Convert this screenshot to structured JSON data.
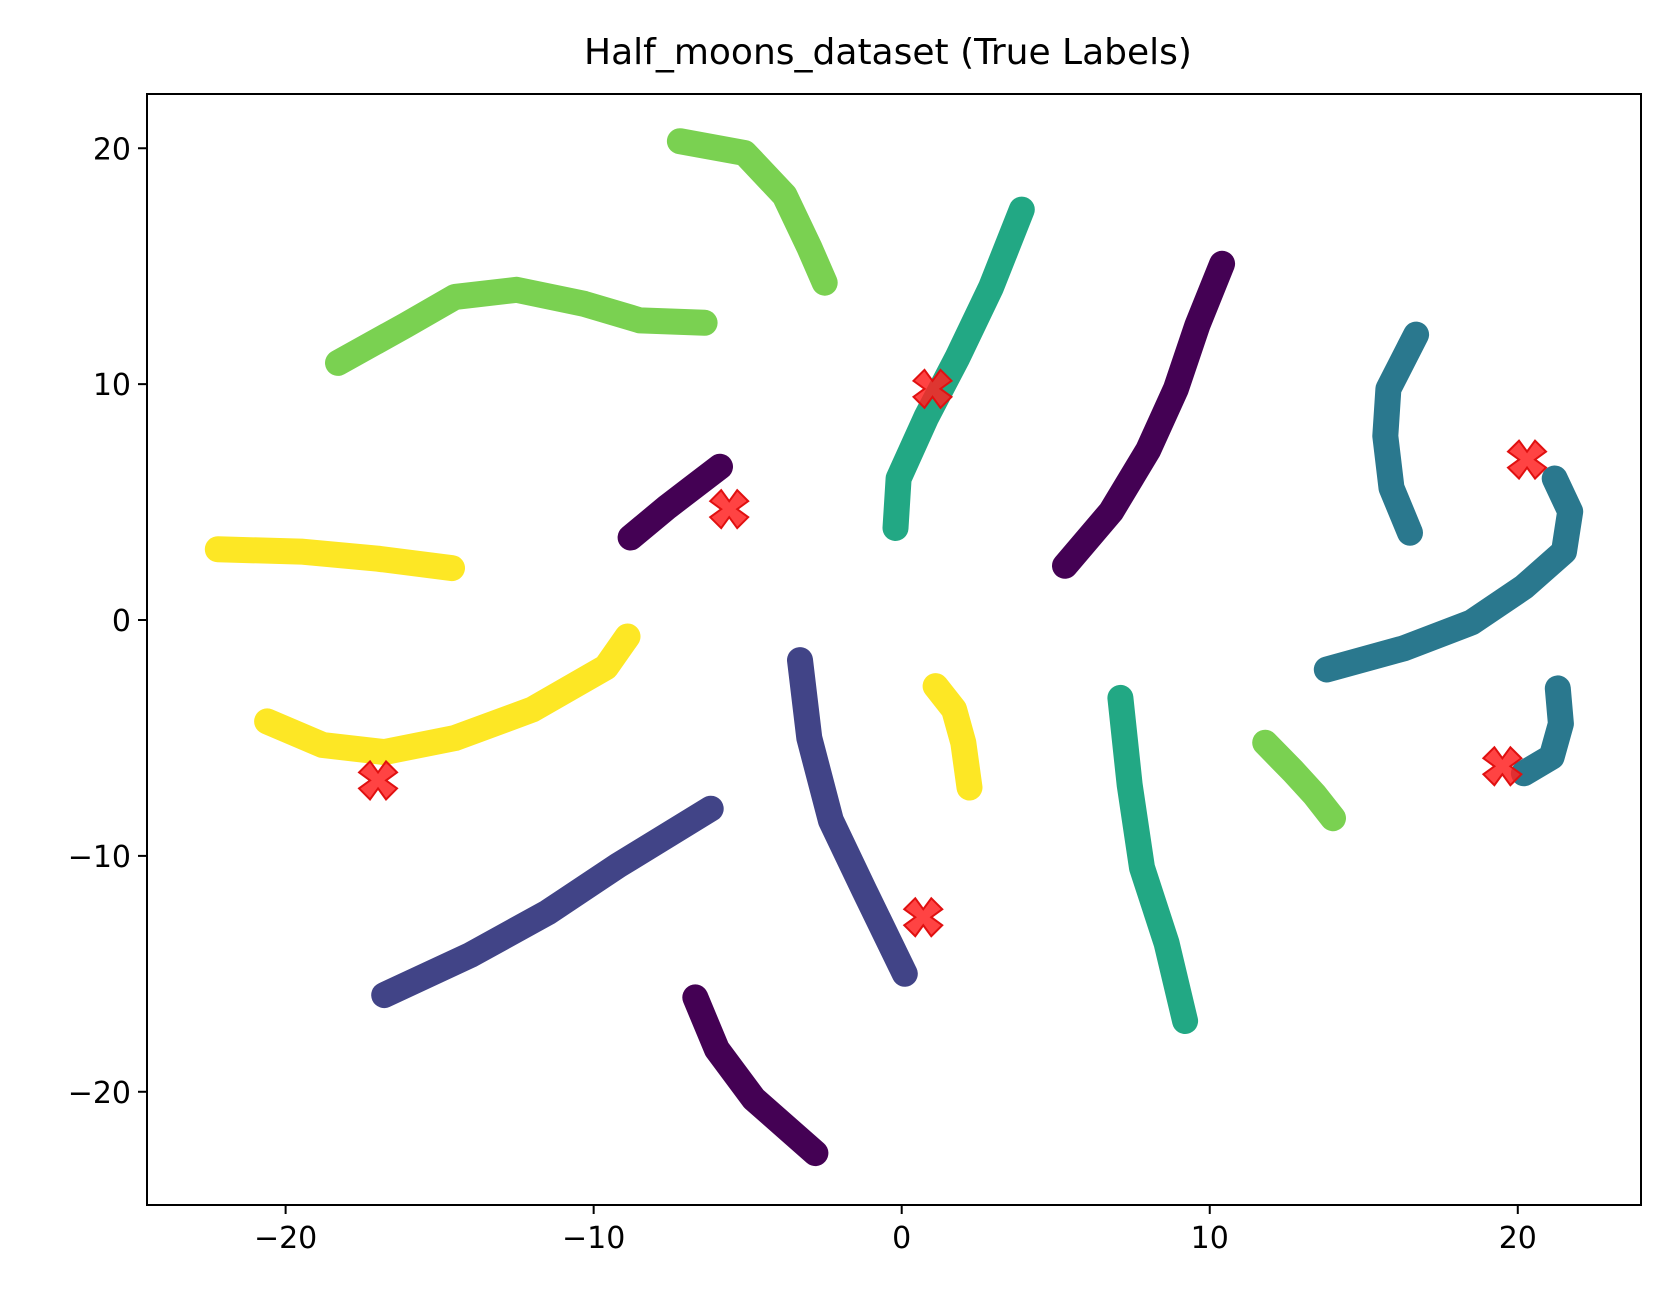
{
  "chart_data": {
    "type": "scatter",
    "title": "Half_moons_dataset (True Labels)",
    "xlabel": "",
    "ylabel": "",
    "xlim": [
      -24.5,
      24
    ],
    "ylim": [
      -24.8,
      22.3
    ],
    "xticks": [
      -20,
      -10,
      0,
      10,
      20
    ],
    "yticks": [
      20,
      10,
      0,
      -10,
      -20
    ],
    "xtick_labels": [
      "−20",
      "−10",
      "0",
      "10",
      "20"
    ],
    "ytick_labels": [
      "20",
      "10",
      "0",
      "−10",
      "−20"
    ],
    "grid": false,
    "legend": false,
    "colormap": "viridis",
    "palette": {
      "0": "#440154",
      "1": "#414487",
      "2": "#2a788e",
      "3": "#22a884",
      "4": "#7ad151",
      "5": "#fde725"
    },
    "series": [
      {
        "label_id": 0,
        "points": [
          [
            -8.8,
            3.5
          ],
          [
            -7.6,
            4.8
          ],
          [
            -6.8,
            5.6
          ],
          [
            -5.9,
            6.5
          ]
        ]
      },
      {
        "label_id": 0,
        "points": [
          [
            5.3,
            2.3
          ],
          [
            6.8,
            4.6
          ],
          [
            8.0,
            7.2
          ],
          [
            8.9,
            9.8
          ],
          [
            9.6,
            12.5
          ],
          [
            10.4,
            15.1
          ]
        ]
      },
      {
        "label_id": 0,
        "points": [
          [
            -6.7,
            -16.0
          ],
          [
            -6.0,
            -18.2
          ],
          [
            -4.8,
            -20.3
          ],
          [
            -2.8,
            -22.6
          ]
        ]
      },
      {
        "label_id": 1,
        "points": [
          [
            -16.8,
            -15.9
          ],
          [
            -14.0,
            -14.2
          ],
          [
            -11.5,
            -12.4
          ],
          [
            -9.2,
            -10.4
          ],
          [
            -6.2,
            -8.0
          ]
        ]
      },
      {
        "label_id": 1,
        "points": [
          [
            -3.3,
            -1.7
          ],
          [
            -3.0,
            -5.0
          ],
          [
            -2.3,
            -8.5
          ],
          [
            -1.2,
            -11.5
          ],
          [
            0.1,
            -15.0
          ]
        ]
      },
      {
        "label_id": 2,
        "points": [
          [
            16.5,
            3.7
          ],
          [
            15.9,
            5.6
          ],
          [
            15.7,
            7.8
          ],
          [
            15.8,
            9.8
          ],
          [
            16.7,
            12.1
          ]
        ]
      },
      {
        "label_id": 2,
        "points": [
          [
            13.8,
            -2.1
          ],
          [
            16.3,
            -1.2
          ],
          [
            18.5,
            -0.1
          ],
          [
            20.2,
            1.4
          ],
          [
            21.5,
            2.9
          ],
          [
            21.7,
            4.6
          ],
          [
            21.2,
            6.0
          ]
        ]
      },
      {
        "label_id": 2,
        "points": [
          [
            20.2,
            -6.5
          ],
          [
            21.1,
            -5.8
          ],
          [
            21.4,
            -4.4
          ],
          [
            21.3,
            -2.9
          ]
        ]
      },
      {
        "label_id": 3,
        "points": [
          [
            -0.2,
            3.9
          ],
          [
            -0.1,
            6.0
          ],
          [
            0.8,
            8.6
          ],
          [
            1.8,
            11.1
          ],
          [
            2.9,
            14.1
          ],
          [
            3.9,
            17.4
          ]
        ]
      },
      {
        "label_id": 3,
        "points": [
          [
            7.1,
            -3.3
          ],
          [
            7.4,
            -7.0
          ],
          [
            7.8,
            -10.5
          ],
          [
            8.6,
            -13.7
          ],
          [
            9.2,
            -17.0
          ]
        ]
      },
      {
        "label_id": 4,
        "points": [
          [
            -7.2,
            20.3
          ],
          [
            -5.1,
            19.8
          ],
          [
            -3.8,
            18.0
          ],
          [
            -3.0,
            15.8
          ],
          [
            -2.5,
            14.3
          ]
        ]
      },
      {
        "label_id": 4,
        "points": [
          [
            -18.3,
            10.9
          ],
          [
            -16.1,
            12.5
          ],
          [
            -14.5,
            13.7
          ],
          [
            -12.5,
            14.0
          ],
          [
            -10.3,
            13.4
          ],
          [
            -8.5,
            12.7
          ],
          [
            -6.4,
            12.6
          ]
        ]
      },
      {
        "label_id": 4,
        "points": [
          [
            11.8,
            -5.2
          ],
          [
            12.7,
            -6.4
          ],
          [
            13.4,
            -7.4
          ],
          [
            14.0,
            -8.4
          ]
        ]
      },
      {
        "label_id": 5,
        "points": [
          [
            -22.2,
            3.0
          ],
          [
            -19.5,
            2.9
          ],
          [
            -17.0,
            2.6
          ],
          [
            -14.6,
            2.2
          ]
        ]
      },
      {
        "label_id": 5,
        "points": [
          [
            -20.6,
            -4.3
          ],
          [
            -18.8,
            -5.3
          ],
          [
            -16.8,
            -5.6
          ],
          [
            -14.5,
            -5.0
          ],
          [
            -12.0,
            -3.8
          ],
          [
            -9.6,
            -2.0
          ],
          [
            -8.9,
            -0.7
          ]
        ]
      },
      {
        "label_id": 5,
        "points": [
          [
            1.1,
            -2.8
          ],
          [
            1.7,
            -3.8
          ],
          [
            2.0,
            -5.2
          ],
          [
            2.2,
            -7.1
          ]
        ]
      }
    ],
    "centroids": [
      {
        "x": 1.0,
        "y": 9.8
      },
      {
        "x": -5.6,
        "y": 4.7
      },
      {
        "x": 20.3,
        "y": 6.8
      },
      {
        "x": 19.5,
        "y": -6.2
      },
      {
        "x": 0.7,
        "y": -12.6
      },
      {
        "x": -17.0,
        "y": -6.8
      }
    ],
    "centroid_color": "#ff2222"
  }
}
